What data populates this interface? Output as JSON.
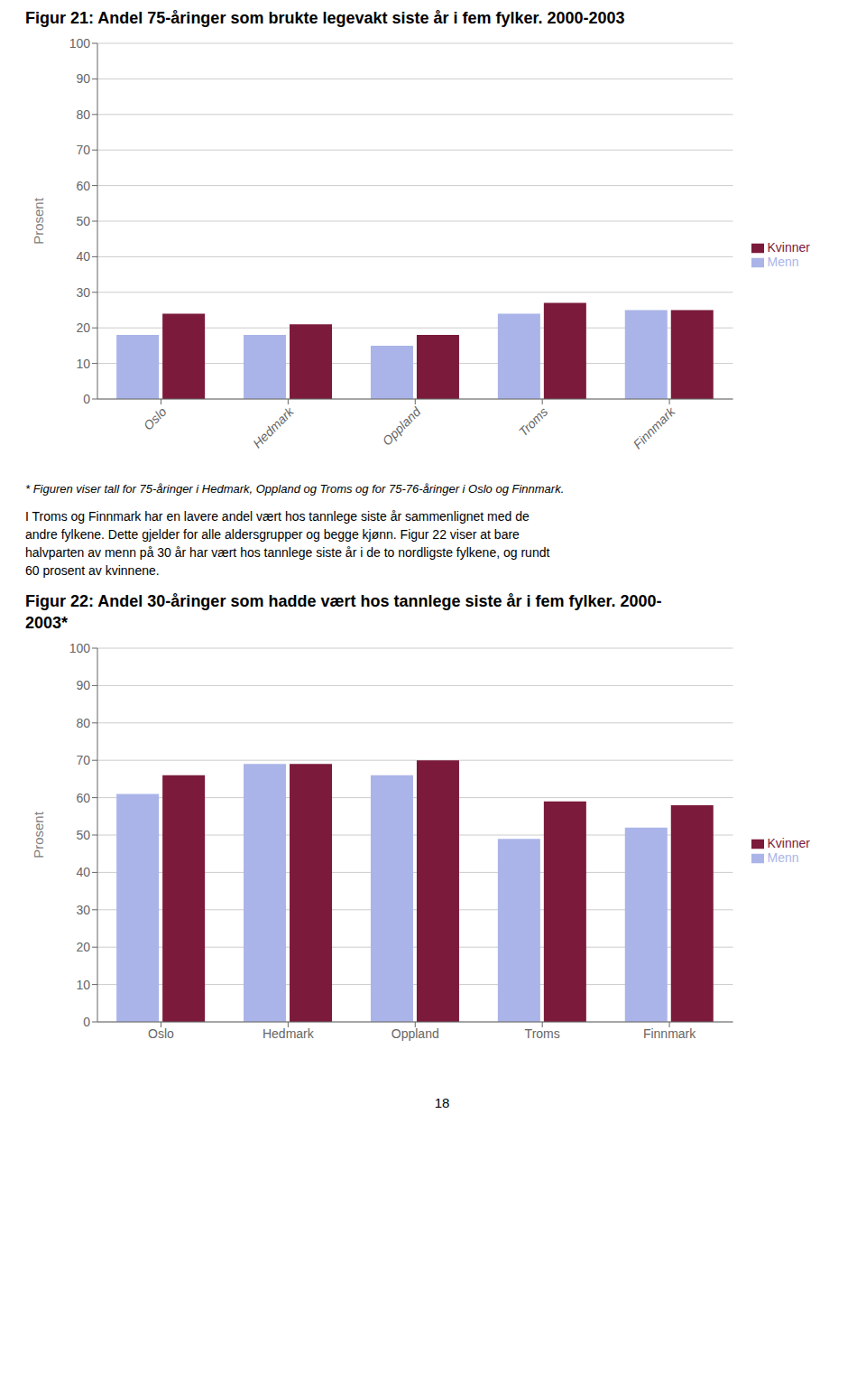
{
  "chart_data": [
    {
      "type": "bar",
      "title": "Figur 21: Andel 75-åringer som brukte legevakt siste år i fem fylker. 2000-2003",
      "categories": [
        "Oslo",
        "Hedmark",
        "Oppland",
        "Troms",
        "Finnmark"
      ],
      "series": [
        {
          "name": "Menn",
          "color": "#aab4e8",
          "values": [
            18,
            18,
            15,
            24,
            25
          ]
        },
        {
          "name": "Kvinner",
          "color": "#7b1a3a",
          "values": [
            24,
            21,
            18,
            27,
            25
          ]
        }
      ],
      "ylabel": "Prosent",
      "ylim": [
        0,
        100
      ],
      "yticks": [
        0,
        10,
        20,
        30,
        40,
        50,
        60,
        70,
        80,
        90,
        100
      ],
      "grid": true,
      "legend": "right",
      "annotations": [
        "* Figuren viser tall for 75-åringer i Hedmark, Oppland og Troms og for 75-76-åringer i Oslo og Finnmark.",
        "I Troms og Finnmark har en lavere andel vært hos tannlege siste år sammenlignet med de",
        "andre fylkene. Dette gjelder for alle aldersgrupper og begge kjønn. Figur 22 viser at bare",
        "halvparten av menn på 30 år har vært hos tannlege siste år i de to nordligste fylkene, og rundt",
        "60 prosent av kvinnene."
      ]
    },
    {
      "type": "bar",
      "title": [
        "Figur 22: Andel 30-åringer som hadde vært hos tannlege siste år i fem fylker. 2000-",
        "2003*"
      ],
      "categories": [
        "Oslo",
        "Hedmark",
        "Oppland",
        "Troms",
        "Finnmark"
      ],
      "series": [
        {
          "name": "Menn",
          "color": "#aab4e8",
          "values": [
            61,
            69,
            66,
            49,
            52
          ]
        },
        {
          "name": "Kvinner",
          "color": "#7b1a3a",
          "values": [
            66,
            69,
            70,
            59,
            58
          ]
        }
      ],
      "ylabel": "Prosent",
      "ylim": [
        0,
        100
      ],
      "yticks": [
        0,
        10,
        20,
        30,
        40,
        50,
        60,
        70,
        80,
        90,
        100
      ],
      "grid": true,
      "legend": "right",
      "annotations": [
        "18"
      ]
    }
  ]
}
